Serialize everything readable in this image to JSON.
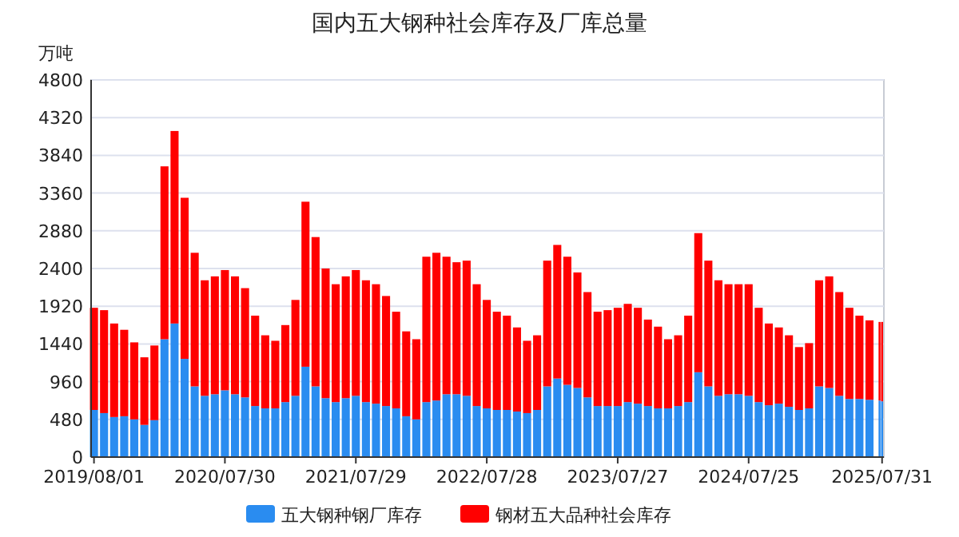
{
  "chart_data": {
    "type": "bar",
    "title": "国内五大钢种社会库存及厂库总量",
    "ylabel": "万吨",
    "stacked": true,
    "grid": "y",
    "legend": "bottom",
    "x": [
      "2019-08-01",
      "2019-08-29",
      "2019-09-26",
      "2019-10-24",
      "2019-11-21",
      "2019-12-19",
      "2020-01-16",
      "2020-02-13",
      "2020-03-12",
      "2020-04-09",
      "2020-05-07",
      "2020-06-04",
      "2020-07-02",
      "2020-07-30",
      "2020-08-27",
      "2020-09-24",
      "2020-10-22",
      "2020-11-19",
      "2020-12-17",
      "2021-01-14",
      "2021-02-11",
      "2021-03-11",
      "2021-04-08",
      "2021-05-06",
      "2021-06-03",
      "2021-07-01",
      "2021-07-29",
      "2021-08-26",
      "2021-09-23",
      "2021-10-21",
      "2021-11-18",
      "2021-12-16",
      "2022-01-13",
      "2022-02-10",
      "2022-03-10",
      "2022-04-07",
      "2022-05-05",
      "2022-06-02",
      "2022-06-30",
      "2022-07-28",
      "2022-08-25",
      "2022-09-22",
      "2022-10-20",
      "2022-11-17",
      "2022-12-15",
      "2023-01-12",
      "2023-02-09",
      "2023-03-09",
      "2023-04-06",
      "2023-05-04",
      "2023-06-01",
      "2023-06-29",
      "2023-07-27",
      "2023-08-24",
      "2023-09-21",
      "2023-10-19",
      "2023-11-16",
      "2023-12-14",
      "2024-01-11",
      "2024-02-08",
      "2024-03-07",
      "2024-04-04",
      "2024-05-02",
      "2024-05-30",
      "2024-06-27",
      "2024-07-25",
      "2024-08-22",
      "2024-09-19",
      "2024-10-17",
      "2024-11-14",
      "2024-12-12",
      "2025-01-09",
      "2025-02-06",
      "2025-03-06",
      "2025-04-03",
      "2025-05-01",
      "2025-05-29",
      "2025-06-26",
      "2025-07-24",
      "2025-07-31"
    ],
    "series": [
      {
        "name": "五大钢种钢厂库存",
        "color": "#2a8cf0",
        "values": [
          600,
          560,
          510,
          520,
          480,
          410,
          470,
          1500,
          1700,
          1250,
          900,
          780,
          800,
          850,
          800,
          760,
          650,
          620,
          620,
          700,
          780,
          1150,
          900,
          750,
          700,
          750,
          780,
          700,
          680,
          650,
          620,
          520,
          480,
          700,
          720,
          800,
          800,
          780,
          650,
          620,
          600,
          600,
          580,
          560,
          600,
          900,
          1000,
          920,
          880,
          760,
          650,
          650,
          650,
          700,
          680,
          650,
          620,
          620,
          650,
          700,
          1080,
          900,
          780,
          800,
          800,
          780,
          700,
          660,
          680,
          640,
          600,
          620,
          900,
          880,
          780,
          740,
          740,
          730,
          720,
          710
        ]
      },
      {
        "name": "钢材五大品种社会库存",
        "color": "#ff0000",
        "values": [
          1300,
          1310,
          1190,
          1100,
          980,
          860,
          950,
          2200,
          2450,
          2050,
          1700,
          1470,
          1500,
          1530,
          1500,
          1390,
          1150,
          930,
          860,
          980,
          1220,
          2100,
          1900,
          1650,
          1500,
          1550,
          1600,
          1550,
          1520,
          1400,
          1230,
          1080,
          1020,
          1850,
          1880,
          1750,
          1680,
          1720,
          1550,
          1380,
          1250,
          1200,
          1070,
          920,
          950,
          1600,
          1700,
          1630,
          1470,
          1340,
          1200,
          1220,
          1250,
          1250,
          1220,
          1100,
          1040,
          880,
          900,
          1100,
          1770,
          1600,
          1470,
          1400,
          1400,
          1420,
          1200,
          1040,
          970,
          910,
          800,
          830,
          1350,
          1420,
          1320,
          1160,
          1060,
          1010,
          1000,
          1010
        ]
      }
    ],
    "xlim": [
      "2019-07-24",
      "2025-08-05"
    ],
    "xticks": [
      {
        "value": "2019-08-01",
        "label": "2019/08/01"
      },
      {
        "value": "2020-07-30",
        "label": "2020/07/30"
      },
      {
        "value": "2021-07-29",
        "label": "2021/07/29"
      },
      {
        "value": "2022-07-28",
        "label": "2022/07/28"
      },
      {
        "value": "2023-07-27",
        "label": "2023/07/27"
      },
      {
        "value": "2024-07-25",
        "label": "2024/07/25"
      },
      {
        "value": "2025-07-31",
        "label": "2025/07/31"
      }
    ],
    "ylim": [
      0,
      4800
    ],
    "yticks": [
      0,
      480,
      960,
      1440,
      1920,
      2400,
      2880,
      3360,
      3840,
      4320,
      4800
    ]
  }
}
